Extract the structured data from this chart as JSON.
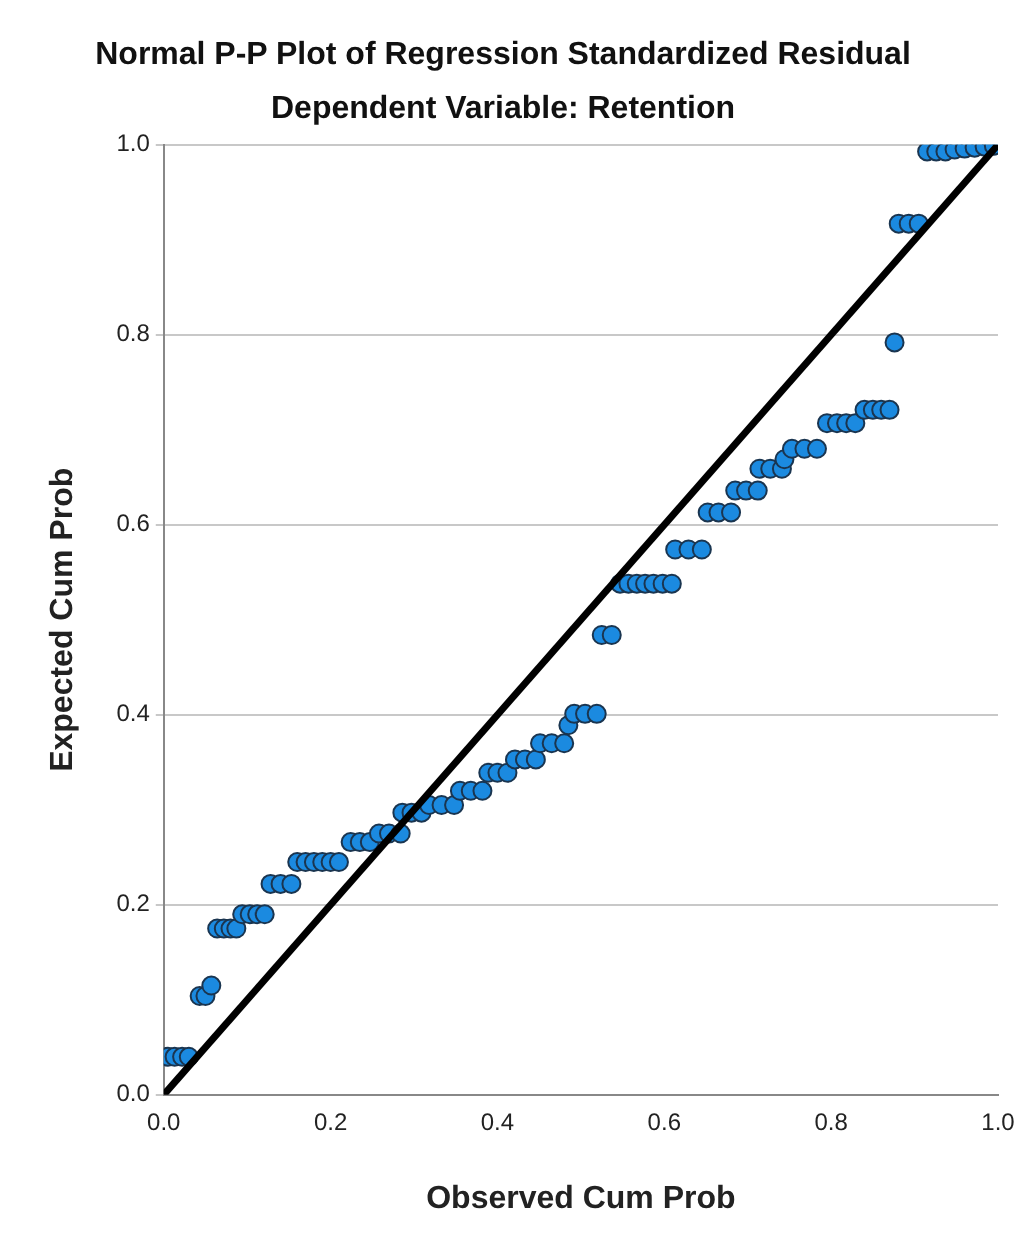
{
  "chart_data": {
    "type": "scatter",
    "title": "Normal P-P Plot of Regression Standardized Residual",
    "subtitle": "Dependent Variable: Retention",
    "xlabel": "Observed Cum Prob",
    "ylabel": "Expected Cum Prob",
    "xlim": [
      0,
      1
    ],
    "ylim": [
      0,
      1
    ],
    "xticks": [
      {
        "value": 0,
        "label": "0.0"
      },
      0.2,
      0.4,
      0.6,
      0.8,
      {
        "value": 1,
        "label": "1.0"
      }
    ],
    "yticks": [
      {
        "value": 0,
        "label": "0.0"
      },
      0.2,
      0.4,
      0.6,
      0.8,
      {
        "value": 1,
        "label": "1.0"
      }
    ],
    "grid": "y",
    "legend": false,
    "marker": "circle",
    "series": [
      {
        "color": "#1b8ae0",
        "x": [
          0.005,
          0.013,
          0.022,
          0.03,
          0.043,
          0.05,
          0.057,
          0.064,
          0.072,
          0.08,
          0.087,
          0.094,
          0.103,
          0.112,
          0.121,
          0.128,
          0.14,
          0.153,
          0.16,
          0.17,
          0.18,
          0.19,
          0.2,
          0.21,
          0.224,
          0.235,
          0.247,
          0.258,
          0.27,
          0.284,
          0.286,
          0.297,
          0.309,
          0.318,
          0.333,
          0.348,
          0.355,
          0.368,
          0.382,
          0.389,
          0.4,
          0.412,
          0.421,
          0.433,
          0.446,
          0.451,
          0.465,
          0.48,
          0.485,
          0.492,
          0.505,
          0.519,
          0.525,
          0.537,
          0.547,
          0.557,
          0.567,
          0.577,
          0.587,
          0.598,
          0.609,
          0.613,
          0.629,
          0.645,
          0.652,
          0.665,
          0.68,
          0.685,
          0.698,
          0.712,
          0.714,
          0.727,
          0.741,
          0.744,
          0.753,
          0.768,
          0.783,
          0.795,
          0.807,
          0.818,
          0.829,
          0.84,
          0.85,
          0.86,
          0.87,
          0.876,
          0.881,
          0.893,
          0.905,
          0.915,
          0.926,
          0.937,
          0.948,
          0.96,
          0.972,
          0.984,
          0.995
        ],
        "values": [
          0.04,
          0.04,
          0.04,
          0.04,
          0.104,
          0.104,
          0.115,
          0.175,
          0.175,
          0.175,
          0.175,
          0.19,
          0.19,
          0.19,
          0.19,
          0.222,
          0.222,
          0.222,
          0.245,
          0.245,
          0.245,
          0.245,
          0.245,
          0.245,
          0.266,
          0.266,
          0.266,
          0.275,
          0.275,
          0.275,
          0.297,
          0.297,
          0.297,
          0.305,
          0.305,
          0.305,
          0.32,
          0.32,
          0.32,
          0.339,
          0.339,
          0.339,
          0.353,
          0.353,
          0.353,
          0.37,
          0.37,
          0.37,
          0.389,
          0.401,
          0.401,
          0.401,
          0.484,
          0.484,
          0.538,
          0.538,
          0.538,
          0.538,
          0.538,
          0.538,
          0.538,
          0.574,
          0.574,
          0.574,
          0.613,
          0.613,
          0.613,
          0.636,
          0.636,
          0.636,
          0.659,
          0.659,
          0.659,
          0.669,
          0.68,
          0.68,
          0.68,
          0.707,
          0.707,
          0.707,
          0.707,
          0.721,
          0.721,
          0.721,
          0.721,
          0.792,
          0.917,
          0.917,
          0.917,
          0.993,
          0.993,
          0.993,
          0.995,
          0.996,
          0.997,
          0.998,
          0.999
        ]
      },
      {
        "type": "line",
        "color": "#000000",
        "marker": "none",
        "x": [
          0,
          1
        ],
        "values": [
          0,
          1
        ]
      }
    ]
  }
}
